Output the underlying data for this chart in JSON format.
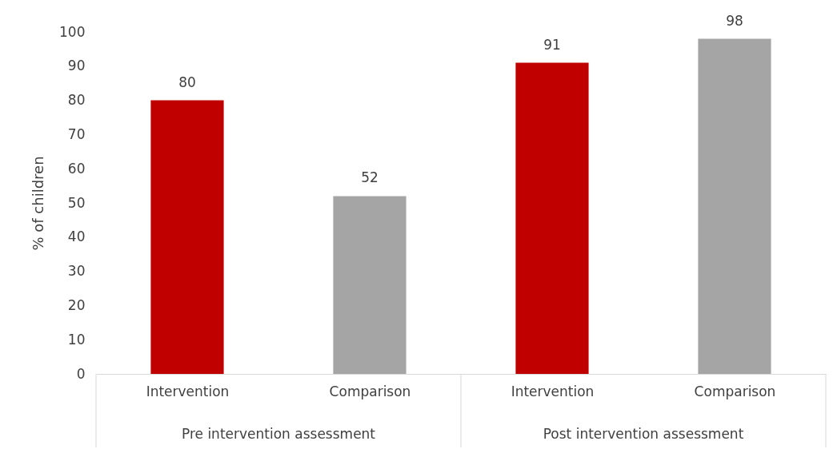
{
  "chart_data": {
    "type": "bar",
    "ylabel": "% of children",
    "categories": [
      "Intervention",
      "Comparison",
      "Intervention",
      "Comparison"
    ],
    "values": [
      80,
      52,
      91,
      98
    ],
    "colors": [
      "#c00000",
      "#a5a5a5",
      "#c00000",
      "#a5a5a5"
    ],
    "ylim": [
      0,
      100
    ],
    "yticks": [
      0,
      10,
      20,
      30,
      40,
      50,
      60,
      70,
      80,
      90,
      100
    ],
    "data_labels": true,
    "grid": false,
    "annotations": [
      "Pre intervention assessment",
      "Post intervention assessment"
    ]
  }
}
